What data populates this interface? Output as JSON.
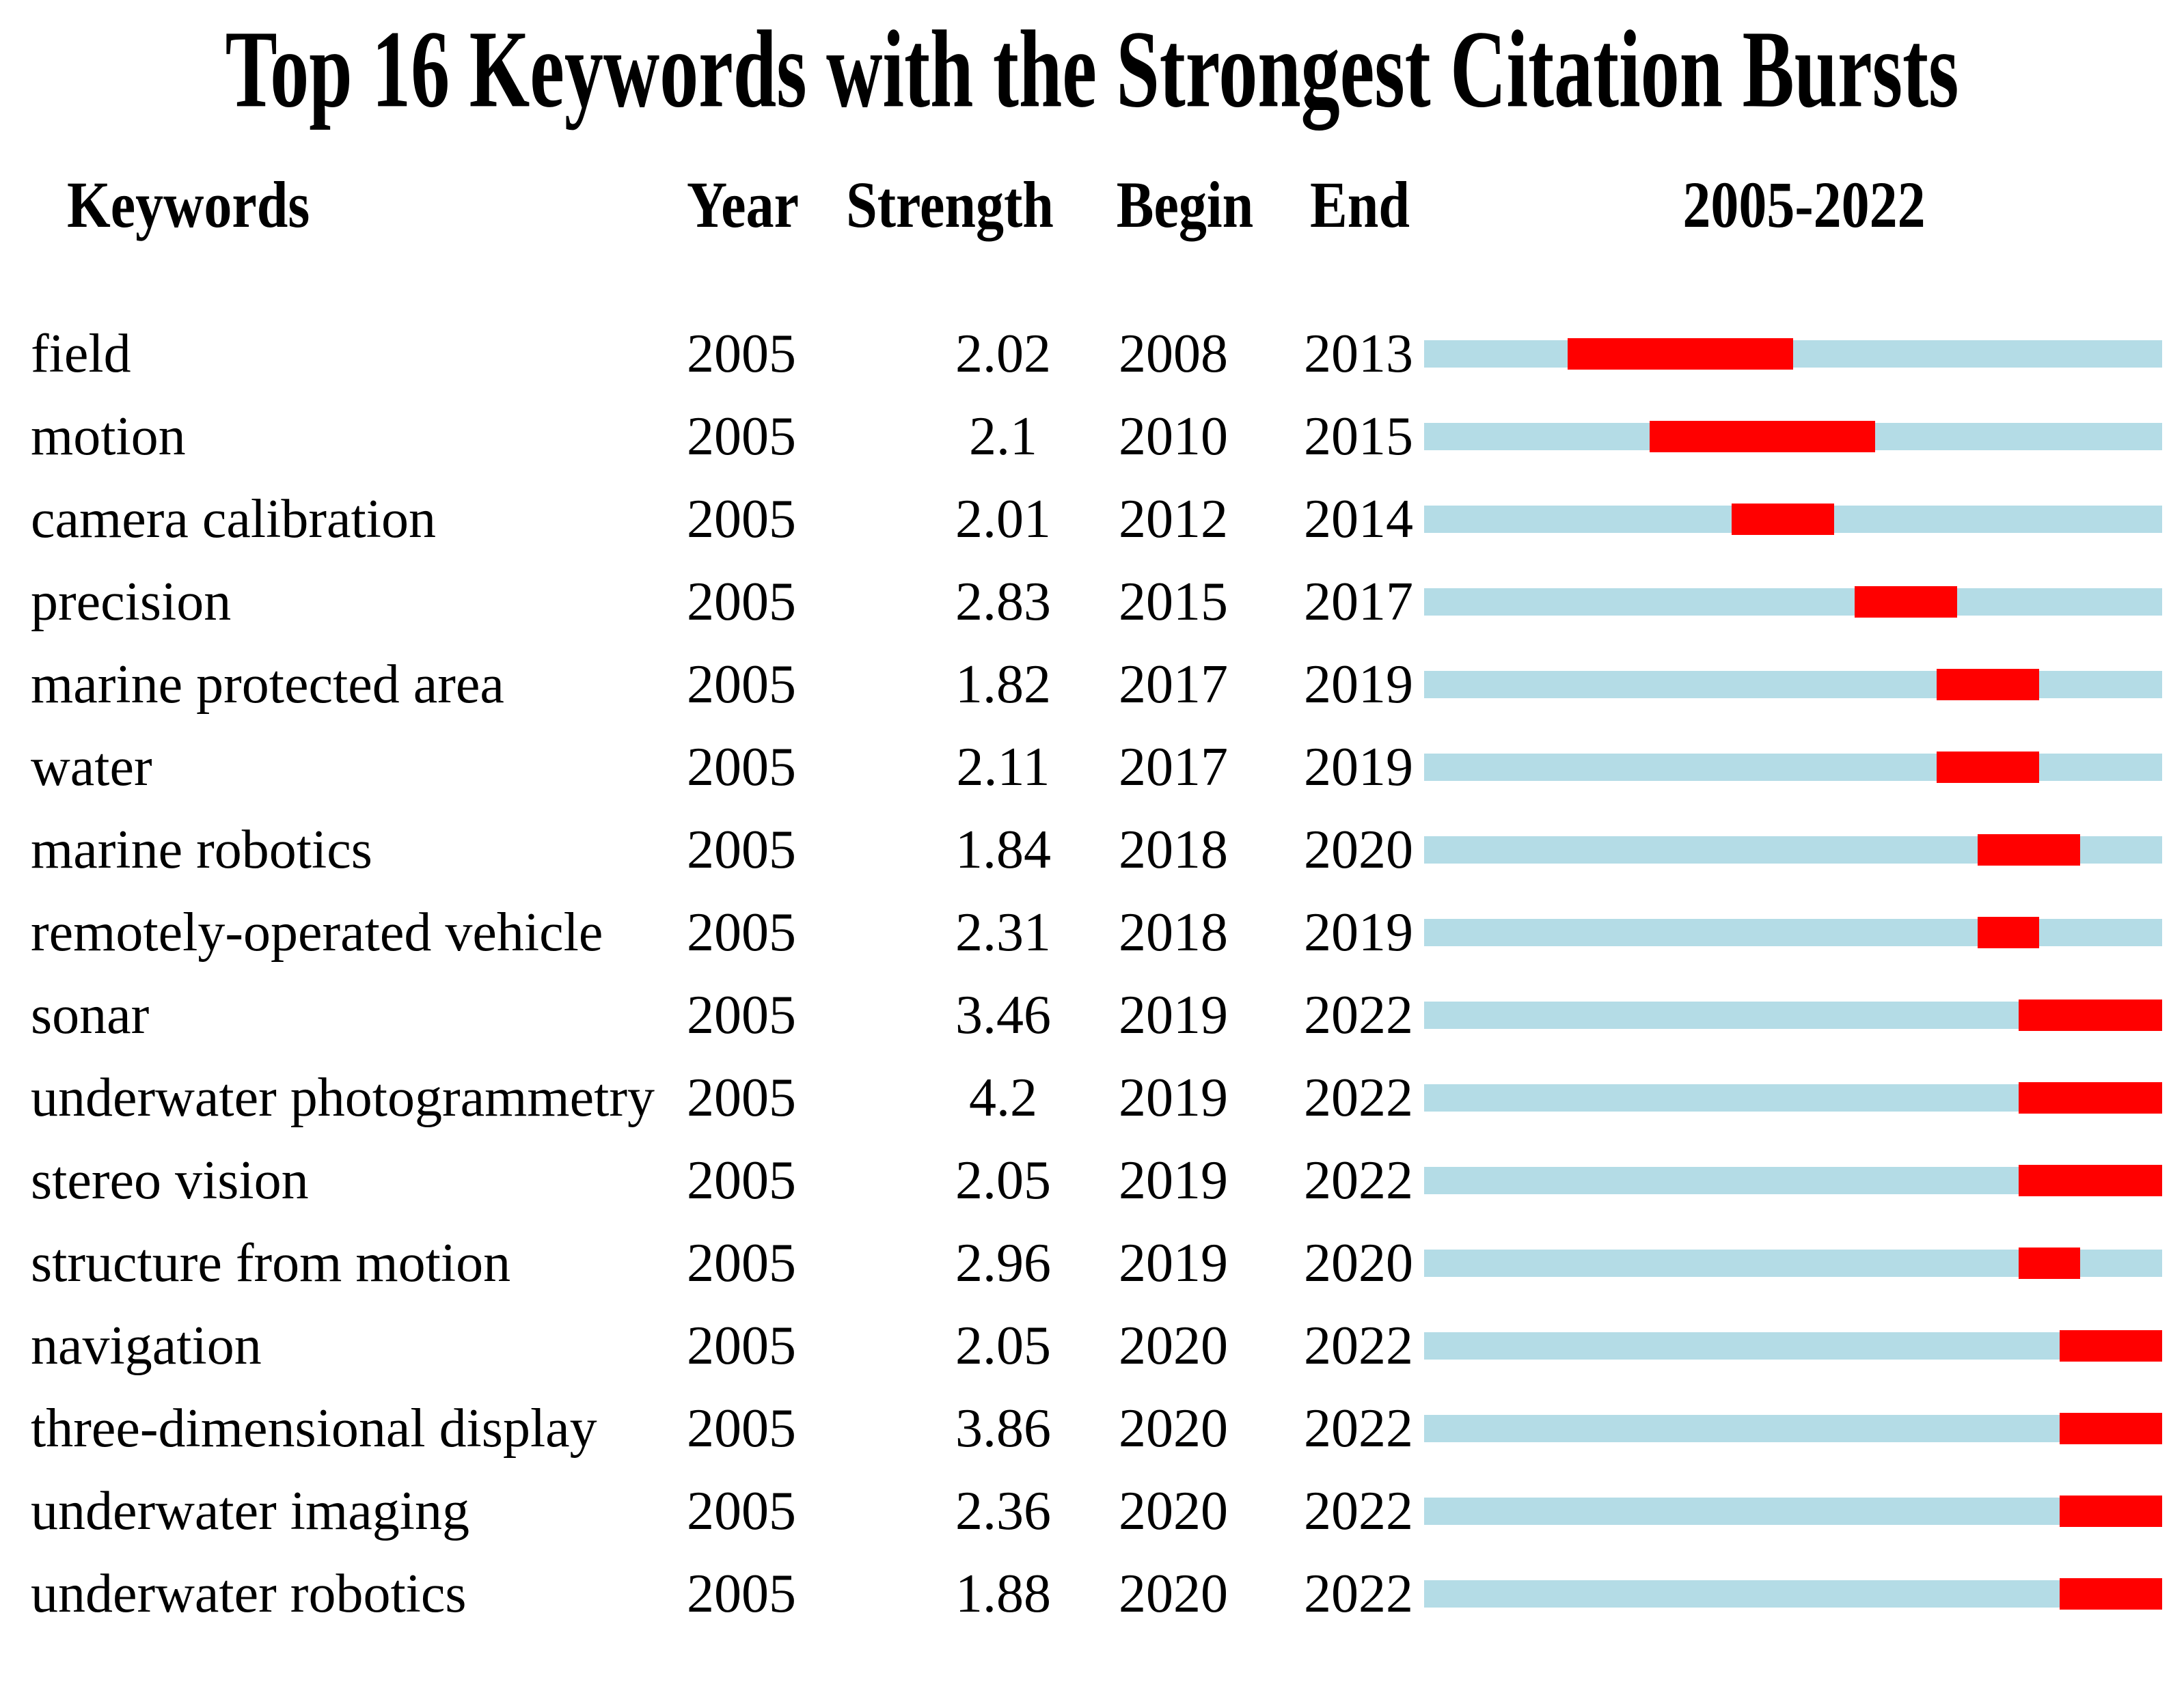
{
  "title": "Top 16 Keywords with the Strongest Citation Bursts",
  "headers": {
    "keywords": "Keywords",
    "year": "Year",
    "strength": "Strength",
    "begin": "Begin",
    "end": "End",
    "range": "2005-2022"
  },
  "colors": {
    "bar_background": "#B4DCE6",
    "burst": "#FF0000",
    "text": "#000000",
    "page_background": "#FFFFFF"
  },
  "chart_data": {
    "type": "table",
    "title": "Top 16 Keywords with the Strongest Citation Bursts",
    "columns": [
      "Keywords",
      "Year",
      "Strength",
      "Begin",
      "End",
      "2005-2022"
    ],
    "timeline": {
      "axis_label": "2005-2022",
      "start_year": 2005,
      "end_year": 2022,
      "bar_style": "light blue full-range bar with red burst segment from Begin to End"
    },
    "rows": [
      {
        "keyword": "field",
        "year": "2005",
        "strength": "2.02",
        "begin": 2008,
        "end": 2013
      },
      {
        "keyword": "motion",
        "year": "2005",
        "strength": "2.1",
        "begin": 2010,
        "end": 2015
      },
      {
        "keyword": "camera calibration",
        "year": "2005",
        "strength": "2.01",
        "begin": 2012,
        "end": 2014
      },
      {
        "keyword": "precision",
        "year": "2005",
        "strength": "2.83",
        "begin": 2015,
        "end": 2017
      },
      {
        "keyword": "marine protected area",
        "year": "2005",
        "strength": "1.82",
        "begin": 2017,
        "end": 2019
      },
      {
        "keyword": "water",
        "year": "2005",
        "strength": "2.11",
        "begin": 2017,
        "end": 2019
      },
      {
        "keyword": "marine robotics",
        "year": "2005",
        "strength": "1.84",
        "begin": 2018,
        "end": 2020
      },
      {
        "keyword": "remotely-operated vehicle",
        "year": "2005",
        "strength": "2.31",
        "begin": 2018,
        "end": 2019
      },
      {
        "keyword": "sonar",
        "year": "2005",
        "strength": "3.46",
        "begin": 2019,
        "end": 2022
      },
      {
        "keyword": "underwater photogrammetry",
        "year": "2005",
        "strength": "4.2",
        "begin": 2019,
        "end": 2022
      },
      {
        "keyword": "stereo vision",
        "year": "2005",
        "strength": "2.05",
        "begin": 2019,
        "end": 2022
      },
      {
        "keyword": "structure from motion",
        "year": "2005",
        "strength": "2.96",
        "begin": 2019,
        "end": 2020
      },
      {
        "keyword": "navigation",
        "year": "2005",
        "strength": "2.05",
        "begin": 2020,
        "end": 2022
      },
      {
        "keyword": "three-dimensional display",
        "year": "2005",
        "strength": "3.86",
        "begin": 2020,
        "end": 2022
      },
      {
        "keyword": "underwater imaging",
        "year": "2005",
        "strength": "2.36",
        "begin": 2020,
        "end": 2022
      },
      {
        "keyword": "underwater robotics",
        "year": "2005",
        "strength": "1.88",
        "begin": 2020,
        "end": 2022
      }
    ]
  }
}
